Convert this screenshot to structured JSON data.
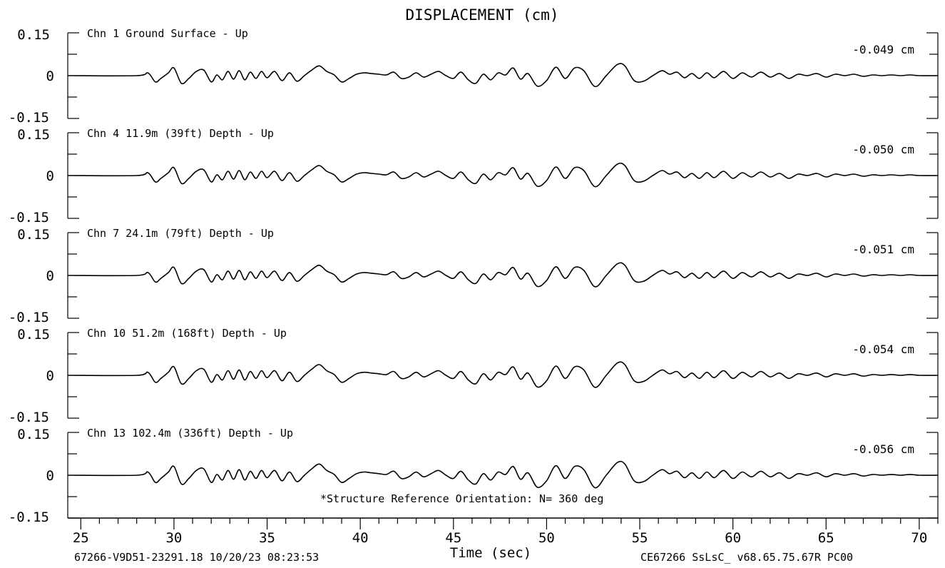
{
  "chart_data": {
    "type": "line",
    "title": "DISPLACEMENT (cm)",
    "xlabel": "Time (sec)",
    "xlim": [
      24.3,
      71.0
    ],
    "xticks": [
      25,
      30,
      35,
      40,
      45,
      50,
      55,
      60,
      65,
      70
    ],
    "ylim": [
      -0.15,
      0.15
    ],
    "ytick_labels": [
      "0.15",
      "0",
      "-0.15"
    ],
    "annotation": "*Structure Reference Orientation: N= 360 deg",
    "footer_left": "67266-V9D51-23291.18 10/20/23 08:23:53",
    "footer_right": "CE67266  SsLsC_  v68.65.75.67R PC00",
    "color": "#000000",
    "shared_waveform": {
      "t": [
        24.3,
        28.0,
        28.6,
        29.0,
        29.3,
        29.7,
        30.0,
        30.4,
        30.8,
        31.2,
        31.6,
        32.0,
        32.3,
        32.6,
        32.9,
        33.2,
        33.5,
        33.8,
        34.1,
        34.4,
        34.7,
        35.0,
        35.4,
        35.8,
        36.2,
        36.6,
        37.0,
        37.4,
        37.8,
        38.2,
        38.6,
        39.0,
        39.4,
        39.8,
        40.2,
        40.6,
        41.0,
        41.4,
        41.8,
        42.2,
        42.6,
        43.0,
        43.4,
        43.8,
        44.2,
        44.6,
        45.0,
        45.4,
        45.8,
        46.2,
        46.6,
        47.0,
        47.4,
        47.8,
        48.2,
        48.6,
        49.0,
        49.5,
        50.0,
        50.5,
        51.0,
        51.5,
        52.0,
        52.6,
        53.2,
        53.8,
        54.2,
        54.7,
        55.2,
        55.7,
        56.2,
        56.6,
        57.0,
        57.4,
        57.8,
        58.2,
        58.6,
        59.0,
        59.5,
        60.0,
        60.5,
        61.0,
        61.5,
        62.0,
        62.5,
        63.0,
        63.5,
        64.0,
        64.5,
        65.0,
        65.5,
        66.0,
        66.5,
        67.0,
        67.5,
        68.0,
        68.5,
        69.0,
        69.5,
        70.0,
        71.0
      ],
      "shape": [
        0.0,
        0.0,
        0.2,
        -0.45,
        -0.2,
        0.2,
        0.55,
        -0.55,
        -0.2,
        0.3,
        0.4,
        -0.45,
        0.05,
        -0.3,
        0.3,
        -0.25,
        0.35,
        -0.3,
        0.25,
        -0.2,
        0.3,
        -0.15,
        0.3,
        -0.35,
        0.2,
        -0.4,
        0.0,
        0.4,
        0.7,
        0.3,
        0.05,
        -0.45,
        -0.2,
        0.1,
        0.2,
        0.15,
        0.1,
        0.05,
        0.25,
        -0.2,
        -0.1,
        0.2,
        -0.1,
        0.1,
        0.3,
        0.0,
        -0.2,
        0.25,
        -0.3,
        -0.55,
        0.1,
        -0.3,
        0.2,
        0.05,
        0.55,
        -0.25,
        0.15,
        -0.75,
        -0.35,
        0.6,
        -0.2,
        0.55,
        0.35,
        -0.78,
        0.0,
        0.8,
        0.7,
        -0.35,
        -0.4,
        0.0,
        0.35,
        0.1,
        0.25,
        -0.15,
        0.15,
        -0.2,
        0.2,
        -0.15,
        0.3,
        -0.2,
        0.2,
        -0.1,
        0.25,
        -0.1,
        0.15,
        -0.2,
        0.1,
        0.0,
        0.15,
        -0.1,
        0.1,
        0.0,
        0.1,
        -0.05,
        0.05,
        0.0,
        0.05,
        0.0,
        0.05,
        0.0,
        0.0
      ]
    },
    "series": [
      {
        "name": "Chn 1  Ground Surface - Up",
        "peak": "-0.049  cm",
        "amplitude": 0.049
      },
      {
        "name": "Chn 4  11.9m (39ft) Depth - Up",
        "peak": "-0.050  cm",
        "amplitude": 0.05
      },
      {
        "name": "Chn 7  24.1m (79ft) Depth - Up",
        "peak": "-0.051  cm",
        "amplitude": 0.051
      },
      {
        "name": "Chn 10  51.2m (168ft) Depth - Up",
        "peak": "-0.054  cm",
        "amplitude": 0.054
      },
      {
        "name": "Chn 13  102.4m (336ft) Depth - Up",
        "peak": "-0.056  cm",
        "amplitude": 0.056
      }
    ]
  }
}
